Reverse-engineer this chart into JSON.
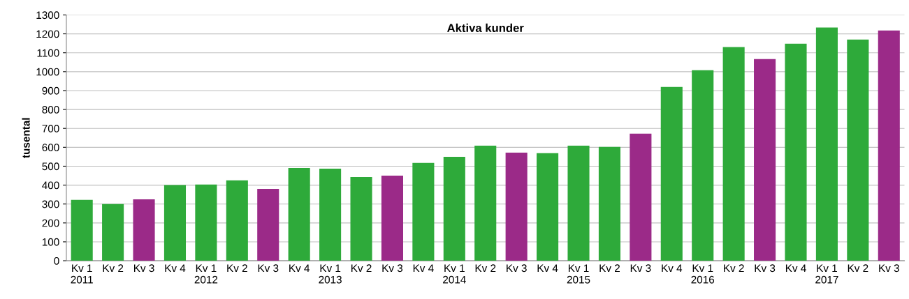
{
  "chart_data": {
    "type": "bar",
    "title": "Aktiva kunder",
    "ylabel": "tusental",
    "categories": [
      "Kv 1\n2011",
      "Kv 2",
      "Kv 3",
      "Kv 4",
      "Kv 1\n2012",
      "Kv 2",
      "Kv 3",
      "Kv 4",
      "Kv 1\n2013",
      "Kv 2",
      "Kv 3",
      "Kv 4",
      "Kv 1\n2014",
      "Kv 2",
      "Kv 3",
      "Kv 4",
      "Kv 1\n2015",
      "Kv 2",
      "Kv 3",
      "Kv 4",
      "Kv 1\n2016",
      "Kv 2",
      "Kv 3",
      "Kv 4",
      "Kv 1\n2017",
      "Kv 2",
      "Kv 3"
    ],
    "values": [
      322,
      300,
      325,
      400,
      403,
      425,
      380,
      491,
      487,
      443,
      450,
      517,
      550,
      609,
      572,
      569,
      609,
      602,
      672,
      919,
      1008,
      1130,
      1067,
      1148,
      1233,
      1170,
      1218
    ],
    "colors": [
      "#2eaa3a",
      "#2eaa3a",
      "#9b2a88",
      "#2eaa3a",
      "#2eaa3a",
      "#2eaa3a",
      "#9b2a88",
      "#2eaa3a",
      "#2eaa3a",
      "#2eaa3a",
      "#9b2a88",
      "#2eaa3a",
      "#2eaa3a",
      "#2eaa3a",
      "#9b2a88",
      "#2eaa3a",
      "#2eaa3a",
      "#2eaa3a",
      "#9b2a88",
      "#2eaa3a",
      "#2eaa3a",
      "#2eaa3a",
      "#9b2a88",
      "#2eaa3a",
      "#2eaa3a",
      "#2eaa3a",
      "#9b2a88"
    ],
    "ylim": [
      0,
      1300
    ],
    "yticks": [
      0,
      100,
      200,
      300,
      400,
      500,
      600,
      700,
      800,
      900,
      1000,
      1100,
      1200,
      1300
    ],
    "grid": "y",
    "legend": false
  }
}
